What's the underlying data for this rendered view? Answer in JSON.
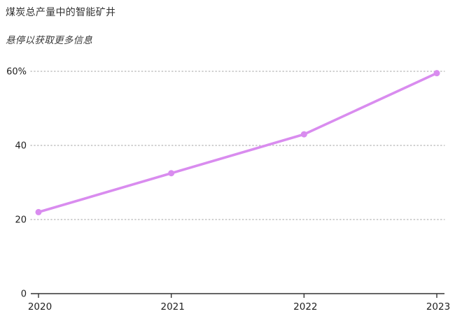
{
  "chart_data": {
    "type": "line",
    "title": "煤炭总产量中的智能矿井",
    "subtitle": "悬停以获取更多信息",
    "categories": [
      "2020",
      "2021",
      "2022",
      "2023"
    ],
    "values": [
      22,
      32.5,
      43,
      59.5
    ],
    "xlabel": "",
    "ylabel": "",
    "ylim": [
      0,
      60
    ],
    "yticks": [
      0,
      20,
      40,
      60
    ],
    "ytick_labels": [
      "0",
      "20",
      "40",
      "60%"
    ],
    "grid": "horizontal-dotted",
    "legend": "none",
    "colors": {
      "line": "#d98cef",
      "marker": "#d98cef",
      "grid": "#b3b3b3",
      "axis": "#333333",
      "tick_text": "#1f1f1f",
      "title_text": "#333333"
    }
  }
}
